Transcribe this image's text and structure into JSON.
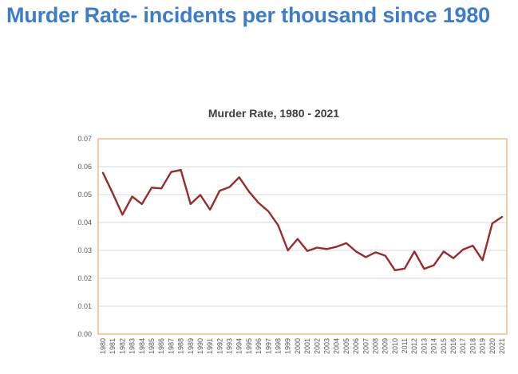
{
  "slide": {
    "title": "Murder Rate- incidents per thousand since 1980"
  },
  "colors": {
    "title": "#3c7ccc",
    "line": "#9b2a2a",
    "plot_border": "#e0a040",
    "grid": "#d9d9d9"
  },
  "chart_data": {
    "type": "line",
    "title": "Murder Rate, 1980 - 2021",
    "xlabel": "",
    "ylabel": "",
    "ylim": [
      0,
      0.07
    ],
    "yticks": [
      "0.00",
      "0.01",
      "0.02",
      "0.03",
      "0.04",
      "0.05",
      "0.06",
      "0.07"
    ],
    "grid": true,
    "x": [
      "1980",
      "1981",
      "1982",
      "1983",
      "1984",
      "1985",
      "1986",
      "1987",
      "1988",
      "1989",
      "1990",
      "1991",
      "1992",
      "1993",
      "1994",
      "1995",
      "1996",
      "1997",
      "1998",
      "1999",
      "2000",
      "2001",
      "2002",
      "2003",
      "2004",
      "2005",
      "2006",
      "2007",
      "2008",
      "2009",
      "2010",
      "2011",
      "2012",
      "2013",
      "2014",
      "2015",
      "2016",
      "2017",
      "2018",
      "2019",
      "2020",
      "2021"
    ],
    "values": [
      0.0578,
      0.0505,
      0.0428,
      0.0493,
      0.0466,
      0.0525,
      0.0522,
      0.0581,
      0.0588,
      0.0466,
      0.0499,
      0.0446,
      0.0514,
      0.0527,
      0.0562,
      0.0511,
      0.047,
      0.044,
      0.039,
      0.03,
      0.0341,
      0.0298,
      0.031,
      0.0305,
      0.0313,
      0.0326,
      0.0296,
      0.0276,
      0.0293,
      0.0281,
      0.0229,
      0.0235,
      0.0296,
      0.0234,
      0.0247,
      0.0296,
      0.0272,
      0.0303,
      0.0317,
      0.0265,
      0.0397,
      0.042
    ]
  }
}
